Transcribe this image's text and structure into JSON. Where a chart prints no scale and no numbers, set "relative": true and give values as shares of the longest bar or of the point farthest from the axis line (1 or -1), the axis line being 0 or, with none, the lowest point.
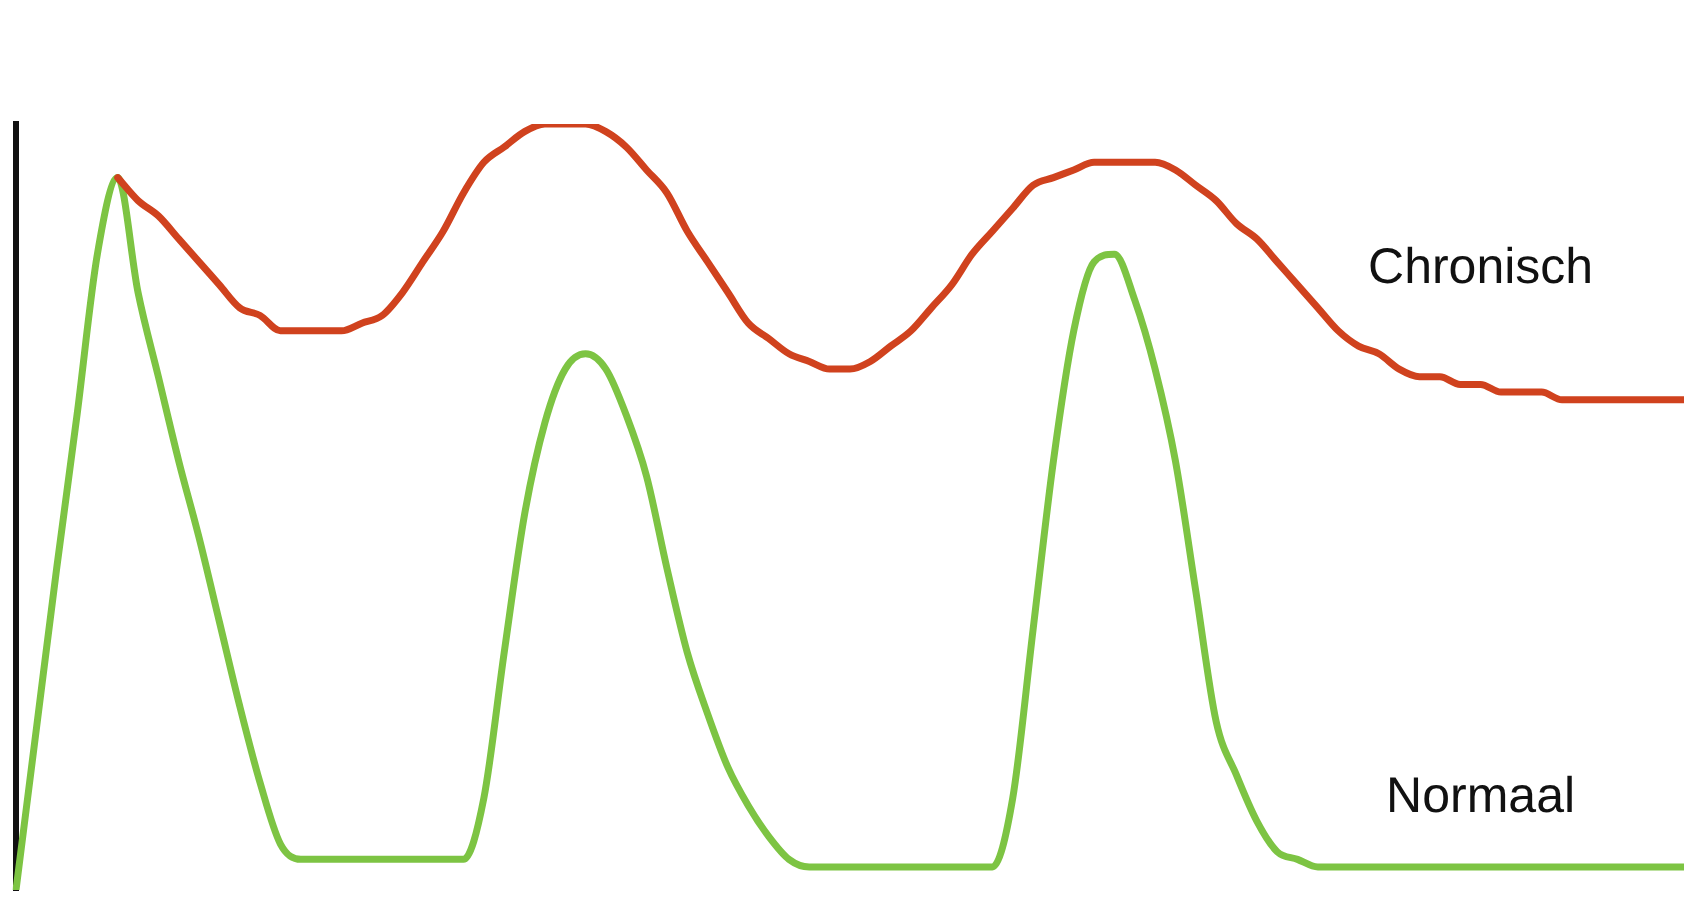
{
  "chart_data": {
    "type": "line",
    "relative": true,
    "legend": false,
    "grid": false,
    "marker": "none",
    "line_style": "solid",
    "categories": [
      null,
      null,
      null,
      null,
      null,
      null,
      null,
      null,
      null,
      null,
      null,
      null,
      null,
      null,
      null,
      null,
      null,
      null,
      null,
      null,
      null,
      null,
      null,
      null,
      null,
      null,
      null,
      null,
      null,
      null,
      null,
      null,
      null,
      null,
      null,
      null,
      null,
      null,
      null,
      null,
      null,
      null,
      null,
      null,
      null,
      null,
      null,
      null,
      null,
      null,
      null,
      null,
      null,
      null,
      null,
      null,
      null,
      null,
      null,
      null,
      null,
      null,
      null,
      null,
      null,
      null,
      null,
      null,
      null,
      null,
      null,
      null,
      null,
      null,
      null,
      null,
      null,
      null,
      null,
      null,
      null,
      null,
      null
    ],
    "series": [
      {
        "name": "Chronisch",
        "color": "#d0421e",
        "values": [
          null,
          null,
          null,
          null,
          null,
          0.93,
          0.9,
          0.88,
          0.85,
          0.82,
          0.79,
          0.76,
          0.75,
          0.73,
          0.73,
          0.73,
          0.73,
          0.74,
          0.75,
          0.78,
          0.82,
          0.86,
          0.91,
          0.95,
          0.97,
          0.99,
          1.0,
          1.0,
          1.0,
          0.99,
          0.97,
          0.94,
          0.91,
          0.86,
          0.82,
          0.78,
          0.74,
          0.72,
          0.7,
          0.69,
          0.68,
          0.68,
          0.69,
          0.71,
          0.73,
          0.76,
          0.79,
          0.83,
          0.86,
          0.89,
          0.92,
          0.93,
          0.94,
          0.95,
          0.95,
          0.95,
          0.95,
          0.94,
          0.92,
          0.9,
          0.87,
          0.85,
          0.82,
          0.79,
          0.76,
          0.73,
          0.71,
          0.7,
          0.68,
          0.67,
          0.67,
          0.66,
          0.66,
          0.65,
          0.65,
          0.65,
          0.64,
          0.64,
          0.64,
          0.64,
          0.64,
          0.64,
          0.64
        ]
      },
      {
        "name": "Normaal",
        "color": "#7dc443",
        "values": [
          0,
          0.21,
          0.42,
          0.62,
          0.83,
          0.93,
          0.78,
          0.67,
          0.56,
          0.46,
          0.35,
          0.24,
          0.14,
          0.06,
          0.04,
          0.04,
          0.04,
          0.04,
          0.04,
          0.04,
          0.04,
          0.04,
          0.04,
          0.12,
          0.31,
          0.49,
          0.61,
          0.68,
          0.7,
          0.68,
          0.62,
          0.54,
          0.42,
          0.31,
          0.23,
          0.16,
          0.11,
          0.07,
          0.04,
          0.03,
          0.03,
          0.03,
          0.03,
          0.03,
          0.03,
          0.03,
          0.03,
          0.03,
          0.03,
          0.12,
          0.34,
          0.56,
          0.73,
          0.82,
          0.83,
          0.77,
          0.68,
          0.56,
          0.39,
          0.22,
          0.15,
          0.09,
          0.05,
          0.04,
          0.03,
          0.03,
          0.03,
          0.03,
          0.03,
          0.03,
          0.03,
          0.03,
          0.03,
          0.03,
          0.03,
          0.03,
          0.03,
          0.03,
          0.03,
          0.03,
          0.03,
          0.03,
          0.03
        ]
      }
    ]
  }
}
